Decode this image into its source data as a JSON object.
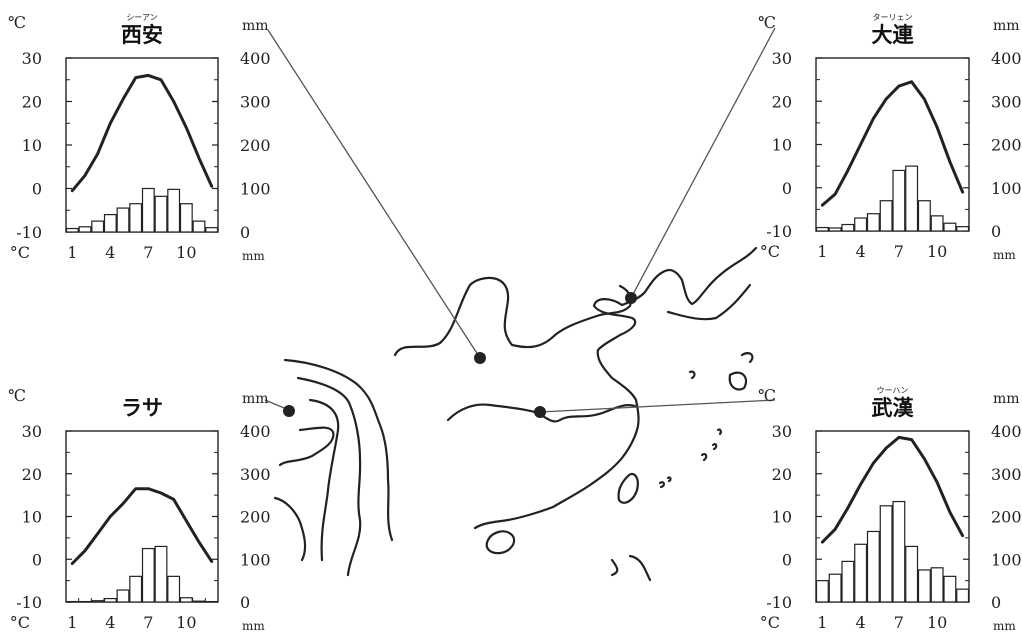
{
  "labels": {
    "temp_unit": "℃",
    "temp_unit_bottom": "°C",
    "precip_unit": "mm"
  },
  "chart_data": [
    {
      "type": "bar",
      "title": "西安",
      "ruby": "シーアン",
      "categories": [
        "1",
        "2",
        "3",
        "4",
        "5",
        "6",
        "7",
        "8",
        "9",
        "10",
        "11",
        "12"
      ],
      "x_ticks": [
        "1",
        "4",
        "7",
        "10"
      ],
      "temp_ylim": [
        -10,
        30
      ],
      "temp_ticks": [
        "30",
        "20",
        "10",
        "0",
        "-10"
      ],
      "precip_ylim": [
        0,
        400
      ],
      "precip_ticks": [
        "400",
        "300",
        "200",
        "100",
        "0"
      ],
      "series": [
        {
          "kind": "line",
          "values": [
            -0.5,
            3,
            8,
            15,
            20.5,
            25.5,
            26,
            25,
            20,
            14,
            7,
            0.5
          ]
        },
        {
          "kind": "bar",
          "values": [
            8,
            12,
            25,
            40,
            55,
            65,
            100,
            82,
            98,
            65,
            25,
            10
          ]
        }
      ]
    },
    {
      "type": "bar",
      "title": "大連",
      "ruby": "ターリェン",
      "categories": [
        "1",
        "2",
        "3",
        "4",
        "5",
        "6",
        "7",
        "8",
        "9",
        "10",
        "11",
        "12"
      ],
      "x_ticks": [
        "1",
        "4",
        "7",
        "10"
      ],
      "temp_ylim": [
        -10,
        30
      ],
      "temp_ticks": [
        "30",
        "20",
        "10",
        "0",
        "-10"
      ],
      "precip_ylim": [
        0,
        400
      ],
      "precip_ticks": [
        "400",
        "300",
        "200",
        "100",
        "0"
      ],
      "series": [
        {
          "kind": "line",
          "values": [
            -4,
            -1.5,
            4,
            10,
            16,
            20.5,
            23.5,
            24.5,
            20.5,
            14,
            6,
            -1
          ]
        },
        {
          "kind": "bar",
          "values": [
            8,
            7,
            15,
            30,
            40,
            70,
            140,
            150,
            70,
            35,
            18,
            10
          ]
        }
      ]
    },
    {
      "type": "bar",
      "title": "ラサ",
      "ruby": "",
      "categories": [
        "1",
        "2",
        "3",
        "4",
        "5",
        "6",
        "7",
        "8",
        "9",
        "10",
        "11",
        "12"
      ],
      "x_ticks": [
        "1",
        "4",
        "7",
        "10"
      ],
      "temp_ylim": [
        -10,
        30
      ],
      "temp_ticks": [
        "30",
        "20",
        "10",
        "0",
        "-10"
      ],
      "precip_ylim": [
        0,
        400
      ],
      "precip_ticks": [
        "400",
        "300",
        "200",
        "100",
        "0"
      ],
      "series": [
        {
          "kind": "line",
          "values": [
            -1,
            2,
            6,
            10,
            13,
            16.5,
            16.5,
            15.5,
            14,
            9,
            4,
            -0.5
          ]
        },
        {
          "kind": "bar",
          "values": [
            1,
            1,
            3,
            8,
            28,
            60,
            125,
            130,
            60,
            10,
            2,
            1
          ]
        }
      ]
    },
    {
      "type": "bar",
      "title": "武漢",
      "ruby": "ウーハン",
      "categories": [
        "1",
        "2",
        "3",
        "4",
        "5",
        "6",
        "7",
        "8",
        "9",
        "10",
        "11",
        "12"
      ],
      "x_ticks": [
        "1",
        "4",
        "7",
        "10"
      ],
      "temp_ylim": [
        -10,
        30
      ],
      "temp_ticks": [
        "30",
        "20",
        "10",
        "0",
        "-10"
      ],
      "precip_ylim": [
        0,
        400
      ],
      "precip_ticks": [
        "400",
        "300",
        "200",
        "100",
        "0"
      ],
      "series": [
        {
          "kind": "line",
          "values": [
            4,
            7,
            12,
            17.5,
            22.5,
            26,
            28.5,
            28,
            23.5,
            18,
            11,
            5.5
          ]
        },
        {
          "kind": "bar",
          "values": [
            50,
            65,
            95,
            135,
            165,
            225,
            235,
            130,
            75,
            80,
            60,
            30
          ]
        }
      ]
    }
  ]
}
